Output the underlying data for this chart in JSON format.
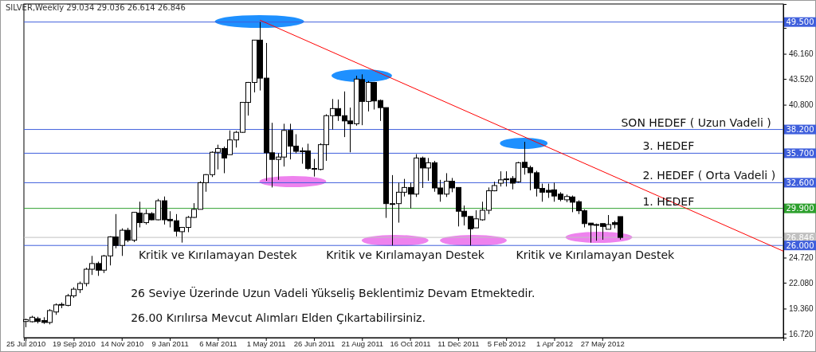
{
  "chart_data": {
    "type": "candlestick",
    "title": "SILVER,Weekly  29.034 29.036 26.614 26.846",
    "x": [
      "2010-07-25",
      "2010-08-01",
      "2010-08-08",
      "2010-08-15",
      "2010-08-22",
      "2010-08-29",
      "2010-09-05",
      "2010-09-12",
      "2010-09-19",
      "2010-09-26",
      "2010-10-03",
      "2010-10-10",
      "2010-10-17",
      "2010-10-24",
      "2010-10-31",
      "2010-11-07",
      "2010-11-14",
      "2010-11-21",
      "2010-11-28",
      "2010-12-05",
      "2010-12-12",
      "2010-12-19",
      "2010-12-26",
      "2011-01-02",
      "2011-01-09",
      "2011-01-16",
      "2011-01-23",
      "2011-01-30",
      "2011-02-06",
      "2011-02-13",
      "2011-02-20",
      "2011-02-27",
      "2011-03-06",
      "2011-03-13",
      "2011-03-20",
      "2011-03-27",
      "2011-04-03",
      "2011-04-10",
      "2011-04-17",
      "2011-04-24",
      "2011-05-01",
      "2011-05-08",
      "2011-05-15",
      "2011-05-22",
      "2011-05-29",
      "2011-06-05",
      "2011-06-12",
      "2011-06-19",
      "2011-06-26",
      "2011-07-03",
      "2011-07-10",
      "2011-07-17",
      "2011-07-24",
      "2011-07-31",
      "2011-08-07",
      "2011-08-14",
      "2011-08-21",
      "2011-08-28",
      "2011-09-04",
      "2011-09-11",
      "2011-09-18",
      "2011-09-25",
      "2011-10-02",
      "2011-10-09",
      "2011-10-16",
      "2011-10-23",
      "2011-10-30",
      "2011-11-06",
      "2011-11-13",
      "2011-11-20",
      "2011-11-27",
      "2011-12-04",
      "2011-12-11",
      "2011-12-18",
      "2011-12-25",
      "2012-01-01",
      "2012-01-08",
      "2012-01-15",
      "2012-01-22",
      "2012-01-29",
      "2012-02-05",
      "2012-02-12",
      "2012-02-19",
      "2012-02-26",
      "2012-03-04",
      "2012-03-11",
      "2012-03-18",
      "2012-03-25",
      "2012-04-01",
      "2012-04-08",
      "2012-04-15",
      "2012-04-22",
      "2012-04-29",
      "2012-05-06",
      "2012-05-13",
      "2012-05-20",
      "2012-05-27",
      "2012-06-03",
      "2012-06-10",
      "2012-06-17"
    ],
    "ohlc": [
      [
        18.0,
        18.3,
        17.4,
        18.2
      ],
      [
        17.98,
        18.6,
        17.9,
        18.45
      ],
      [
        18.3,
        18.5,
        17.8,
        18.0
      ],
      [
        18.1,
        18.45,
        17.75,
        17.9
      ],
      [
        17.9,
        19.3,
        17.7,
        19.15
      ],
      [
        19.0,
        19.9,
        18.7,
        19.75
      ],
      [
        19.75,
        20.0,
        19.4,
        19.8
      ],
      [
        19.7,
        20.9,
        19.6,
        20.7
      ],
      [
        20.7,
        21.6,
        20.5,
        21.4
      ],
      [
        21.35,
        22.2,
        21.0,
        22.0
      ],
      [
        22.0,
        23.65,
        21.7,
        23.5
      ],
      [
        23.5,
        24.9,
        22.9,
        24.1
      ],
      [
        24.1,
        24.3,
        22.8,
        23.4
      ],
      [
        23.4,
        25.0,
        23.1,
        24.9
      ],
      [
        24.9,
        26.97,
        23.9,
        26.9
      ],
      [
        26.9,
        29.3,
        25.7,
        26.0
      ],
      [
        26.0,
        27.8,
        24.9,
        27.6
      ],
      [
        27.6,
        27.85,
        26.35,
        26.55
      ],
      [
        26.55,
        29.5,
        26.35,
        29.48
      ],
      [
        29.4,
        30.6,
        27.9,
        28.4
      ],
      [
        28.4,
        29.8,
        28.2,
        29.35
      ],
      [
        29.35,
        29.5,
        28.65,
        28.7
      ],
      [
        28.7,
        30.9,
        28.65,
        30.7
      ],
      [
        30.7,
        31.15,
        28.2,
        28.7
      ],
      [
        28.75,
        29.6,
        27.9,
        28.6
      ],
      [
        28.6,
        29.3,
        26.95,
        27.5
      ],
      [
        27.45,
        27.9,
        26.3,
        27.9
      ],
      [
        27.9,
        29.1,
        27.4,
        28.95
      ],
      [
        28.95,
        30.45,
        28.9,
        29.8
      ],
      [
        29.8,
        32.75,
        29.8,
        32.6
      ],
      [
        32.6,
        33.5,
        31.65,
        33.45
      ],
      [
        33.45,
        35.9,
        33.2,
        35.8
      ],
      [
        35.8,
        36.6,
        34.0,
        36.2
      ],
      [
        36.2,
        36.4,
        33.6,
        35.2
      ],
      [
        35.55,
        38.1,
        35.55,
        37.1
      ],
      [
        37.1,
        38.05,
        36.3,
        37.9
      ],
      [
        37.9,
        41.05,
        37.85,
        41.05
      ],
      [
        41.05,
        43.2,
        39.66,
        43.15
      ],
      [
        43.15,
        47.6,
        42.1,
        47.6
      ],
      [
        47.6,
        49.5,
        42.3,
        43.6
      ],
      [
        43.6,
        47.3,
        32.8,
        35.75
      ],
      [
        35.75,
        38.9,
        32.1,
        35.05
      ],
      [
        35.05,
        35.7,
        32.9,
        35.3
      ],
      [
        35.3,
        38.8,
        34.3,
        38.1
      ],
      [
        38.1,
        38.8,
        35.05,
        36.45
      ],
      [
        36.45,
        37.7,
        35.7,
        35.9
      ],
      [
        35.95,
        36.3,
        34.6,
        35.9
      ],
      [
        35.95,
        36.7,
        33.95,
        34.1
      ],
      [
        34.05,
        35.1,
        33.25,
        34.1
      ],
      [
        34.0,
        36.75,
        33.9,
        36.6
      ],
      [
        36.6,
        39.8,
        34.9,
        39.65
      ],
      [
        39.65,
        41.4,
        38.2,
        40.4
      ],
      [
        40.4,
        41.35,
        39.1,
        39.65
      ],
      [
        39.65,
        42.2,
        37.4,
        39.1
      ],
      [
        39.1,
        40.5,
        35.8,
        38.8
      ],
      [
        38.8,
        43.85,
        38.6,
        43.5
      ],
      [
        43.45,
        44.0,
        38.65,
        41.15
      ],
      [
        41.15,
        43.3,
        40.1,
        43.15
      ],
      [
        43.15,
        43.2,
        40.3,
        41.2
      ],
      [
        41.25,
        41.35,
        39.1,
        40.5
      ],
      [
        40.5,
        40.5,
        28.9,
        30.4
      ],
      [
        30.4,
        33.4,
        26.0,
        30.4
      ],
      [
        30.4,
        32.6,
        28.4,
        31.6
      ],
      [
        31.6,
        33.0,
        31.15,
        32.1
      ],
      [
        32.1,
        32.6,
        29.9,
        31.4
      ],
      [
        31.4,
        35.6,
        31.1,
        35.2
      ],
      [
        35.2,
        35.35,
        32.05,
        34.15
      ],
      [
        34.15,
        35.2,
        32.8,
        34.7
      ],
      [
        34.7,
        34.9,
        31.65,
        32.05
      ],
      [
        32.05,
        32.9,
        30.6,
        31.4
      ],
      [
        31.4,
        33.6,
        31.1,
        32.75
      ],
      [
        32.75,
        33.1,
        31.6,
        32.05
      ],
      [
        32.1,
        32.1,
        28.0,
        29.6
      ],
      [
        29.6,
        30.2,
        28.1,
        29.05
      ],
      [
        29.05,
        29.05,
        26.0,
        27.75
      ],
      [
        27.85,
        29.7,
        27.85,
        28.8
      ],
      [
        28.7,
        30.6,
        28.6,
        29.7
      ],
      [
        29.7,
        32.1,
        29.3,
        31.75
      ],
      [
        31.75,
        32.7,
        31.7,
        32.3
      ],
      [
        32.55,
        33.8,
        32.2,
        32.9
      ],
      [
        32.95,
        33.8,
        32.2,
        33.0
      ],
      [
        33.05,
        33.3,
        31.9,
        32.55
      ],
      [
        32.7,
        34.8,
        32.6,
        34.7
      ],
      [
        34.75,
        36.9,
        33.45,
        34.2
      ],
      [
        34.2,
        34.4,
        31.8,
        33.65
      ],
      [
        33.65,
        33.85,
        31.15,
        32.0
      ],
      [
        32.0,
        32.5,
        30.6,
        31.6
      ],
      [
        31.8,
        32.5,
        31.0,
        31.6
      ],
      [
        31.85,
        32.6,
        30.6,
        31.2
      ],
      [
        31.4,
        31.6,
        30.65,
        30.85
      ],
      [
        30.8,
        31.35,
        30.55,
        31.15
      ],
      [
        31.1,
        31.25,
        29.5,
        30.55
      ],
      [
        30.6,
        30.75,
        29.3,
        29.65
      ],
      [
        29.65,
        29.8,
        27.9,
        28.3
      ],
      [
        28.35,
        28.35,
        26.3,
        28.15
      ],
      [
        28.2,
        28.3,
        26.5,
        28.2
      ],
      [
        28.3,
        28.3,
        26.6,
        28.0
      ],
      [
        27.7,
        29.2,
        27.7,
        28.2
      ],
      [
        28.4,
        28.6,
        27.8,
        28.2
      ],
      [
        29.034,
        29.036,
        26.614,
        26.846
      ]
    ],
    "series": [
      {
        "type": "line",
        "color": "#ff0000",
        "x": [
          "2011-04-24",
          "2012-12-24"
        ],
        "values": [
          49.7,
          25.4
        ]
      }
    ],
    "xlim": [
      "2010-07-23",
      "2012-12-24"
    ],
    "xticks": [
      {
        "value": "2010-07-25",
        "label": "25 Jul 2010"
      },
      {
        "value": "2010-09-19",
        "label": "19 Sep 2010"
      },
      {
        "value": "2010-11-14",
        "label": "14 Nov 2010"
      },
      {
        "value": "2011-01-09",
        "label": "9 Jan 2011"
      },
      {
        "value": "2011-03-06",
        "label": "6 Mar 2011"
      },
      {
        "value": "2011-05-01",
        "label": "1 May 2011"
      },
      {
        "value": "2011-06-26",
        "label": "26 Jun 2011"
      },
      {
        "value": "2011-08-21",
        "label": "21 Aug 2011"
      },
      {
        "value": "2011-10-16",
        "label": "16 Oct 2011"
      },
      {
        "value": "2011-12-11",
        "label": "11 Dec 2011"
      },
      {
        "value": "2012-02-05",
        "label": "5 Feb 2012"
      },
      {
        "value": "2012-04-01",
        "label": "1 Apr 2012"
      },
      {
        "value": "2012-05-27",
        "label": "27 May 2012"
      }
    ],
    "ylim": [
      16.3,
      51.4
    ],
    "yticks": [
      {
        "value": 16.72,
        "label": "16.720"
      },
      {
        "value": 19.36,
        "label": "19.360"
      },
      {
        "value": 22.08,
        "label": "22.080"
      },
      {
        "value": 24.72,
        "label": "24.720"
      },
      {
        "value": 40.8,
        "label": "40.800"
      },
      {
        "value": 43.52,
        "label": "43.520"
      },
      {
        "value": 46.16,
        "label": "46.160"
      },
      {
        "value": 48.88,
        "label": null
      }
    ],
    "ref_lines": [
      {
        "axis": "y",
        "value": 49.5,
        "label": "49.500",
        "color": "#3f5fdc"
      },
      {
        "axis": "y",
        "value": 38.2,
        "label": "38.200",
        "color": "#3f5fdc"
      },
      {
        "axis": "y",
        "value": 35.7,
        "label": "35.700",
        "color": "#3f5fdc"
      },
      {
        "axis": "y",
        "value": 32.6,
        "label": "32.600",
        "color": "#3f5fdc"
      },
      {
        "axis": "y",
        "value": 29.9,
        "label": "29.900",
        "color": "#2ea02e"
      },
      {
        "axis": "y",
        "value": 26.846,
        "label": "26.846",
        "color": "#c0c0c0"
      },
      {
        "axis": "y",
        "value": 26.0,
        "label": "26.000",
        "color": "#3f5fdc"
      }
    ],
    "annotations": [
      {
        "text": "SON HEDEF ( Uzun Vadeli )",
        "x": "2012-06-18",
        "y": 38.2
      },
      {
        "text": "3. HEDEF",
        "x": "2012-07-13",
        "y": 35.7
      },
      {
        "text": "2. HEDEF ( Orta Vadeli )",
        "x": "2012-07-13",
        "y": 32.6
      },
      {
        "text": "1. HEDEF",
        "x": "2012-07-13",
        "y": 29.9
      },
      "Kritik ve Kırılamayan Destek",
      "Kritik ve Kırılamayan Destek",
      "Kritik ve Kırılamayan Destek",
      "26 Seviye Üzerinde Uzun Vadeli Yükseliş Beklentimiz Devam Etmektedir.",
      "26.00 Kırılırsa Mevcut Alımları Elden Çıkartabilirsiniz."
    ]
  }
}
